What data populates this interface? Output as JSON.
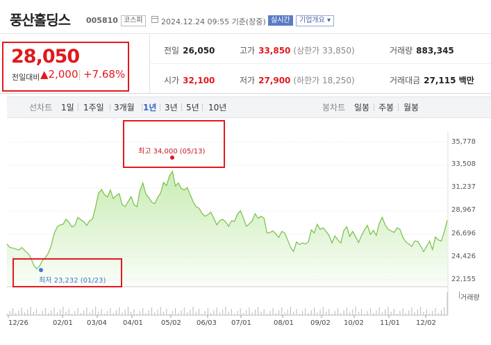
{
  "header": {
    "title": "풍산홀딩스",
    "code": "005810",
    "market": "코스피",
    "datetime": "2024.12.24 09:55 기준(장중)",
    "realtime": "실시간",
    "company_info": "기업개요 ▾"
  },
  "price": {
    "current": "28,050",
    "change_label": "전일대비",
    "change_arrow": "▲",
    "change_abs": "2,000",
    "change_pct": "+7.68%"
  },
  "stats": {
    "prev_close": {
      "label": "전일",
      "value": "26,050"
    },
    "high": {
      "label": "고가",
      "value": "33,850",
      "sub": "(상한가 33,850)"
    },
    "volume": {
      "label": "거래량",
      "value": "883,345"
    },
    "open": {
      "label": "시가",
      "value": "32,100"
    },
    "low": {
      "label": "저가",
      "value": "27,900",
      "sub": "(하한가 18,250)"
    },
    "amount": {
      "label": "거래대금",
      "value": "27,115 백만"
    }
  },
  "tabs": {
    "line_chart": "선차트",
    "periods": [
      "1일",
      "1주일",
      "3개월",
      "1년",
      "3년",
      "5년",
      "10년"
    ],
    "active_period": "1년",
    "candle_chart": "봉차트",
    "candles": [
      "일봉",
      "주봉",
      "월봉"
    ]
  },
  "chart": {
    "high_note": "최고 34,000 (05/13)",
    "low_note": "최저 23,232 (01/23)",
    "volume_label": "거래량",
    "colors": {
      "line": "#74c043",
      "fill": "#c6ebb0",
      "high": "#e0191d",
      "low": "#3d78c9"
    }
  },
  "chart_data": {
    "type": "area",
    "y_ticks": [
      "35,778",
      "33,508",
      "31,237",
      "28,967",
      "26,696",
      "24,426",
      "22,155"
    ],
    "x_ticks": [
      "12/26",
      "02/01",
      "03/04",
      "04/01",
      "05/02",
      "06/03",
      "07/01",
      "08/01",
      "09/02",
      "10/02",
      "11/01",
      "12/02"
    ],
    "ylim": [
      22155,
      35778
    ],
    "series": [
      {
        "values": [
          25700,
          25350,
          25300,
          25200,
          25100,
          25350,
          25050,
          24800,
          24400,
          23650,
          23232,
          23500,
          24050,
          24350,
          24800,
          25550,
          26750,
          27400,
          27600,
          27650,
          28150,
          27850,
          27400,
          27550,
          28350,
          28100,
          27900,
          27550,
          28000,
          28200,
          29400,
          30750,
          31100,
          30600,
          30350,
          31050,
          30200,
          30500,
          30700,
          29600,
          29400,
          29900,
          30400,
          29600,
          29400,
          31000,
          31750,
          30650,
          30300,
          29850,
          29700,
          30300,
          30750,
          31800,
          31500,
          32450,
          32900,
          31450,
          31750,
          31200,
          31050,
          31300,
          30600,
          29900,
          29400,
          29250,
          28750,
          28450,
          28600,
          28850,
          28250,
          27600,
          28000,
          28150,
          27900,
          27450,
          28000,
          27950,
          28650,
          29000,
          28300,
          27450,
          27700,
          28000,
          28700,
          28250,
          28450,
          28250,
          26800,
          26850,
          27000,
          26700,
          26350,
          26950,
          26800,
          26100,
          25350,
          24950,
          25900,
          25650,
          25800,
          25700,
          25900,
          27100,
          26800,
          27650,
          27150,
          27300,
          26950,
          26550,
          25800,
          26500,
          26100,
          25800,
          27050,
          27400,
          26450,
          26950,
          26400,
          25850,
          26550,
          27100,
          27550,
          26650,
          27050,
          26550,
          27750,
          28350,
          27600,
          27150,
          27000,
          26850,
          27300,
          27150,
          26350,
          25900,
          25700,
          25450,
          26000,
          25950,
          25500,
          24950,
          25450,
          26000,
          25150,
          26400,
          26100,
          26000,
          26900,
          28050
        ]
      }
    ]
  }
}
